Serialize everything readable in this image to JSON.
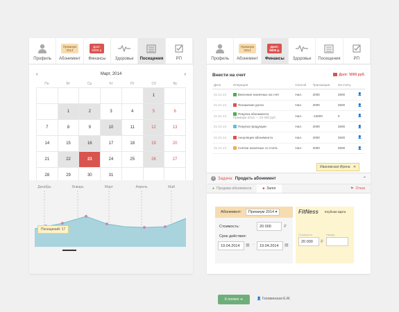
{
  "left": {
    "tabs": [
      {
        "label": "Профиль",
        "icon": "user-icon"
      },
      {
        "label": "Абонемент",
        "badge": "Премиум\n2014",
        "icon": "badge"
      },
      {
        "label": "Финансы",
        "badge": "Долг:\n5000 р.",
        "icon": "badge"
      },
      {
        "label": "Здоровье",
        "icon": "pulse-icon"
      },
      {
        "label": "Посещения",
        "icon": "calendar-icon"
      },
      {
        "label": "РП",
        "icon": "checkbox-icon"
      }
    ],
    "calendar": {
      "title": "Март, 2014",
      "prev": "‹",
      "next": "›",
      "dow": [
        "Пн",
        "Вт",
        "Ср",
        "Чт",
        "Пт",
        "Сб",
        "Вс"
      ],
      "cells": [
        {
          "d": "",
          "t": "empty"
        },
        {
          "d": "",
          "t": "empty"
        },
        {
          "d": "",
          "t": "empty"
        },
        {
          "d": "",
          "t": "empty"
        },
        {
          "d": "",
          "t": "empty"
        },
        {
          "d": "1",
          "t": "grey"
        },
        {
          "d": "",
          "t": "empty"
        },
        {
          "d": "",
          "t": "empty"
        },
        {
          "d": "1",
          "t": "grey"
        },
        {
          "d": "2",
          "t": "grey"
        },
        {
          "d": "3",
          "t": "empty"
        },
        {
          "d": "4",
          "t": "empty"
        },
        {
          "d": "5",
          "t": "grey red"
        },
        {
          "d": "6",
          "t": "red"
        },
        {
          "d": "7",
          "t": "empty"
        },
        {
          "d": "8",
          "t": "empty"
        },
        {
          "d": "9",
          "t": "empty"
        },
        {
          "d": "10",
          "t": "grey"
        },
        {
          "d": "11",
          "t": "empty"
        },
        {
          "d": "12",
          "t": "grey red"
        },
        {
          "d": "13",
          "t": "red"
        },
        {
          "d": "14",
          "t": "empty"
        },
        {
          "d": "15",
          "t": "empty"
        },
        {
          "d": "16",
          "t": "grey"
        },
        {
          "d": "17",
          "t": "empty"
        },
        {
          "d": "18",
          "t": "empty"
        },
        {
          "d": "19",
          "t": "grey red"
        },
        {
          "d": "20",
          "t": "red"
        },
        {
          "d": "21",
          "t": "empty"
        },
        {
          "d": "22",
          "t": "grey"
        },
        {
          "d": "23",
          "t": "today"
        },
        {
          "d": "24",
          "t": "empty"
        },
        {
          "d": "25",
          "t": "empty"
        },
        {
          "d": "26",
          "t": "grey red"
        },
        {
          "d": "27",
          "t": "red"
        },
        {
          "d": "28",
          "t": "empty"
        },
        {
          "d": "29",
          "t": "empty"
        },
        {
          "d": "30",
          "t": "empty"
        },
        {
          "d": "31",
          "t": "empty"
        },
        {
          "d": "",
          "t": "empty"
        },
        {
          "d": "",
          "t": "empty"
        },
        {
          "d": "",
          "t": "empty"
        }
      ]
    },
    "chart": {
      "months": [
        "Декабрь",
        "Январь",
        "Март",
        "Апрель",
        "Май"
      ],
      "tooltip_label": "Посещений:",
      "tooltip_value": "17"
    }
  },
  "right": {
    "tabs": [
      {
        "label": "Профиль",
        "icon": "user-icon"
      },
      {
        "label": "Абонемент",
        "badge": "Премиум\n2014"
      },
      {
        "label": "Финансы",
        "badge": "Долг:\n5000 р."
      },
      {
        "label": "Здоровье",
        "icon": "pulse-icon"
      },
      {
        "label": "Посещения",
        "icon": "calendar-icon"
      },
      {
        "label": "РП",
        "icon": "checkbox-icon"
      }
    ],
    "header": {
      "title": "Внести на счет",
      "debt": "Долг: 5000 руб."
    },
    "table": {
      "columns": [
        "Дата",
        "Операция",
        "Способ",
        "Транзакция",
        "На счету",
        ""
      ],
      "rows": [
        {
          "date": "21.01.13",
          "op": "Внесение наличных на счет",
          "sub": "",
          "method": "Нал.",
          "amount": "2000",
          "type": "g",
          "balance": "2500",
          "color": "#4cae4c"
        },
        {
          "date": "21.01.13",
          "op": "Погашение долга",
          "sub": "",
          "method": "Нал.",
          "amount": "2000",
          "type": "g",
          "balance": "2500",
          "color": "#d9534f"
        },
        {
          "date": "21.01.13",
          "op": "Покупка абонемента",
          "sub": "Премиум 2014 — 22 000 руб.",
          "method": "Нал.",
          "amount": "-15000",
          "type": "r",
          "balance": "0",
          "color": "#4cae4c"
        },
        {
          "date": "21.01.13",
          "op": "Покупка продукции",
          "sub": "",
          "method": "Нал.",
          "amount": "2000",
          "type": "g",
          "balance": "2500",
          "color": "#5bc0de"
        },
        {
          "date": "21.01.13",
          "op": "Аннуляция абонемента",
          "sub": "",
          "method": "Нал.",
          "amount": "2000",
          "type": "g",
          "balance": "2500",
          "color": "#d9534f"
        },
        {
          "date": "21.01.13",
          "op": "Снятие наличных со счета",
          "sub": "",
          "method": "Нал.",
          "amount": "2000",
          "type": "g",
          "balance": "2500",
          "color": "#f0ad4e"
        }
      ]
    },
    "tooltip": "Ивановская Ирина",
    "task": {
      "label": "Задача:",
      "title": "Продать абонемент",
      "tabs": [
        "Продажа абонемента",
        "Залог",
        "Отказ"
      ],
      "sub_label": "Абонемент:",
      "sub_value": "Премиум 2014",
      "cost_label": "Стоимость:",
      "cost_value": "20 000",
      "period_label": "Срок действия:",
      "date_from": "19.04.2014",
      "date_to": "19.04.2014",
      "brand": "FitNess",
      "card_label": "Клубная карта",
      "card_cost_label": "Стоимость",
      "card_cost": "20 000",
      "card_note_label": "Номер",
      "button": "К оплате",
      "manager": "Головинская Е.М."
    }
  }
}
